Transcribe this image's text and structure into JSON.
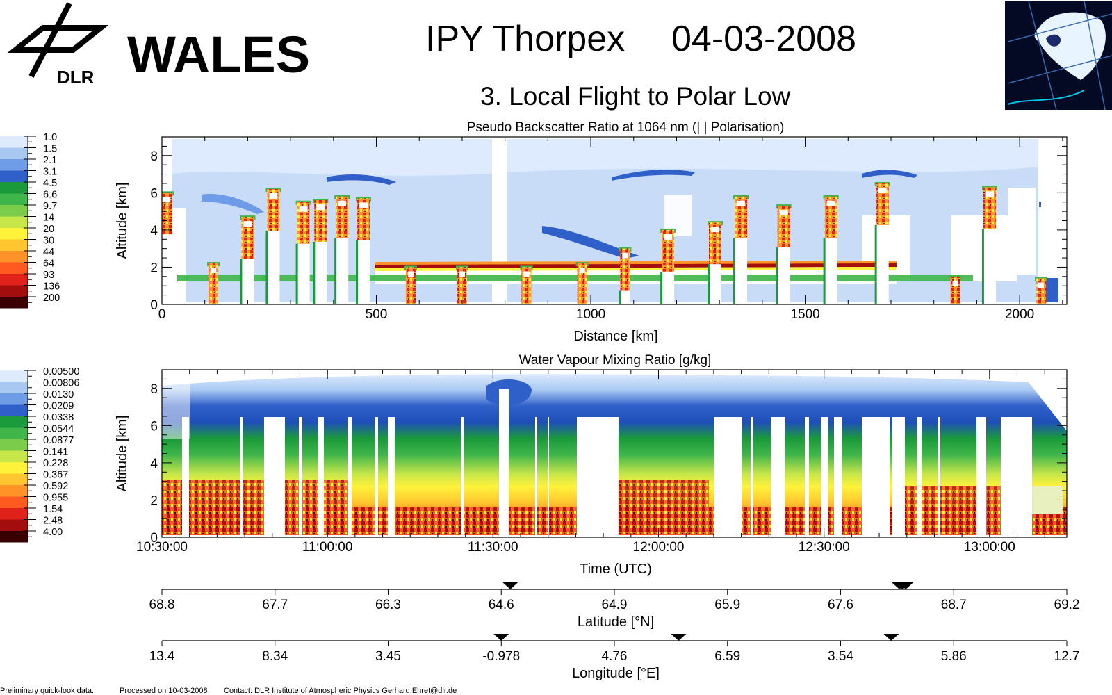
{
  "header": {
    "logo_org": "DLR",
    "brand": "WALES",
    "title_campaign": "IPY Thorpex",
    "title_date": "04-03-2008",
    "subtitle": "3. Local Flight to Polar Low"
  },
  "footer": {
    "note": "Preliminary quick-look data.",
    "processed": "Processed on 10-03-2008",
    "contact": "Contact: DLR Institute of Atmospheric Physics  Gerhard.Ehret@dlr.de"
  },
  "chart_data": [
    {
      "type": "heatmap",
      "title": "Pseudo Backscatter Ratio at 1064 nm    (| | Polarisation)",
      "xlabel": "Distance [km]",
      "ylabel": "Altitude [km]",
      "xlim": [
        0,
        2110
      ],
      "ylim": [
        0,
        9
      ],
      "x_ticks": [
        "0",
        "500",
        "1000",
        "1500",
        "2000"
      ],
      "y_ticks": [
        "0",
        "2",
        "4",
        "6",
        "8"
      ],
      "colorbar": {
        "labels": [
          "1.0",
          "1.5",
          "2.1",
          "3.1",
          "4.5",
          "6.6",
          "9.7",
          "14",
          "20",
          "30",
          "44",
          "64",
          "93",
          "136",
          "200"
        ],
        "colors": [
          "#deebff",
          "#a8c8f2",
          "#6f9ce6",
          "#2f5fc9",
          "#1a9a3a",
          "#3fb54a",
          "#7acc4a",
          "#c6e64a",
          "#fff23a",
          "#ffc62f",
          "#ff9329",
          "#ff5a1f",
          "#e0221a",
          "#a30d0d",
          "#3a0000"
        ]
      },
      "cloud_tops_km": [
        {
          "x": 10,
          "top": 6.0
        },
        {
          "x": 120,
          "top": 2.2
        },
        {
          "x": 200,
          "top": 4.7
        },
        {
          "x": 260,
          "top": 6.2
        },
        {
          "x": 330,
          "top": 5.5
        },
        {
          "x": 370,
          "top": 5.6
        },
        {
          "x": 420,
          "top": 5.8
        },
        {
          "x": 470,
          "top": 5.7
        },
        {
          "x": 580,
          "top": 2.0
        },
        {
          "x": 700,
          "top": 2.0
        },
        {
          "x": 850,
          "top": 2.0
        },
        {
          "x": 980,
          "top": 2.2
        },
        {
          "x": 1080,
          "top": 3.0
        },
        {
          "x": 1180,
          "top": 4.0
        },
        {
          "x": 1290,
          "top": 4.4
        },
        {
          "x": 1350,
          "top": 5.8
        },
        {
          "x": 1450,
          "top": 5.3
        },
        {
          "x": 1560,
          "top": 5.8
        },
        {
          "x": 1680,
          "top": 6.5
        },
        {
          "x": 1850,
          "top": 1.5
        },
        {
          "x": 1930,
          "top": 6.3
        },
        {
          "x": 2050,
          "top": 1.4
        }
      ]
    },
    {
      "type": "heatmap",
      "title": "Water Vapour Mixing Ratio [g/kg]",
      "xlabel": "Time (UTC)",
      "ylabel": "Altitude [km]",
      "xlim": [
        "10:30:00",
        "13:14:00"
      ],
      "ylim": [
        0,
        9
      ],
      "x_ticks": [
        "10:30:00",
        "11:00:00",
        "11:30:00",
        "12:00:00",
        "12:30:00",
        "13:00:00"
      ],
      "y_ticks": [
        "0",
        "2",
        "4",
        "6",
        "8"
      ],
      "colorbar": {
        "labels": [
          "0.00500",
          "0.00806",
          "0.0130",
          "0.0209",
          "0.0338",
          "0.0544",
          "0.0877",
          "0.141",
          "0.228",
          "0.367",
          "0.592",
          "0.955",
          "1.54",
          "2.48",
          "4.00"
        ],
        "colors": [
          "#deebff",
          "#a8c8f2",
          "#6f9ce6",
          "#2f5fc9",
          "#1a9a3a",
          "#3fb54a",
          "#7acc4a",
          "#c6e64a",
          "#fff23a",
          "#ffc62f",
          "#ff9329",
          "#ff5a1f",
          "#e0221a",
          "#a30d0d",
          "#3a0000"
        ]
      }
    },
    {
      "type": "axis",
      "xlabel": "Latitude [°N]",
      "tick_labels": [
        "68.8",
        "67.7",
        "66.3",
        "64.6",
        "64.9",
        "65.9",
        "67.6",
        "68.7",
        "69.2"
      ],
      "turn_markers_frac": [
        0.385,
        0.815,
        0.818,
        0.822
      ]
    },
    {
      "type": "axis",
      "xlabel": "Longitude [°E]",
      "tick_labels": [
        "13.4",
        "8.34",
        "3.45",
        "-0.978",
        "4.76",
        "6.59",
        "3.54",
        "5.86",
        "12.7"
      ],
      "turn_markers_frac": [
        0.375,
        0.571,
        0.806
      ]
    }
  ]
}
